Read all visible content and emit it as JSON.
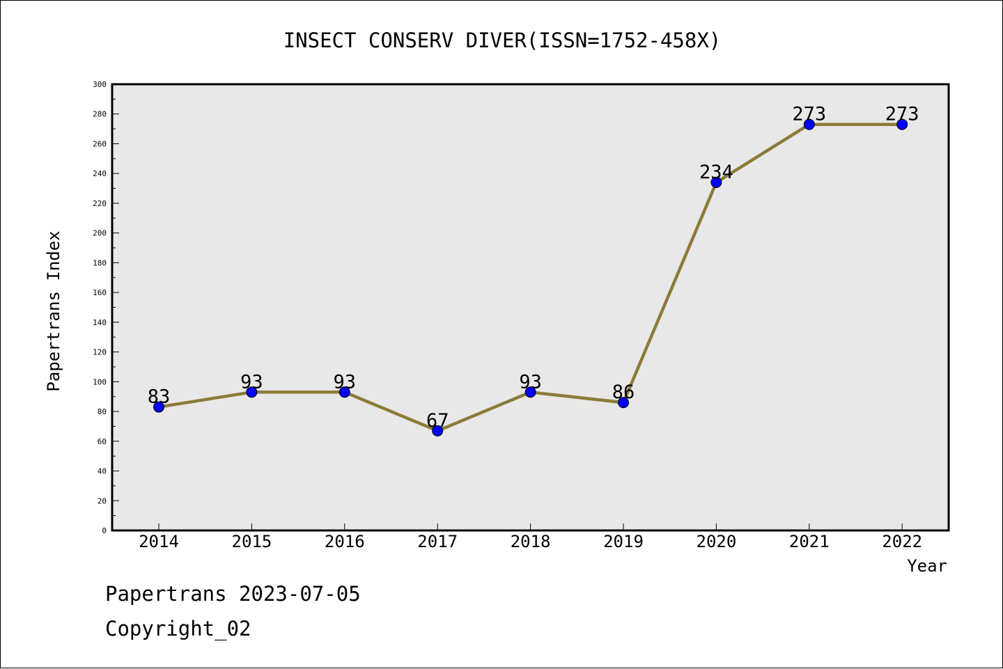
{
  "chart_data": {
    "type": "line",
    "title": "INSECT CONSERV DIVER(ISSN=1752-458X)",
    "xlabel": "Year",
    "ylabel": "Papertrans Index",
    "categories": [
      "2014",
      "2015",
      "2016",
      "2017",
      "2018",
      "2019",
      "2020",
      "2021",
      "2022"
    ],
    "series": [
      {
        "values": [
          83,
          93,
          93,
          67,
          93,
          86,
          234,
          273,
          273
        ]
      }
    ],
    "data_labels": [
      "83",
      "93",
      "93",
      "67",
      "93",
      "86",
      "234",
      "273",
      "273"
    ],
    "ylim": [
      0,
      300
    ],
    "y_ticks": [
      "0",
      "20",
      "40",
      "60",
      "80",
      "100",
      "120",
      "140",
      "160",
      "180",
      "200",
      "220",
      "240",
      "260",
      "280",
      "300"
    ],
    "grid": false,
    "line_color": "#8c7b3a",
    "marker_color": "#0000ff",
    "plot_background": "#e8e8e8"
  },
  "footer": {
    "line1": "Papertrans 2023-07-05",
    "line2": "Copyright_02"
  }
}
